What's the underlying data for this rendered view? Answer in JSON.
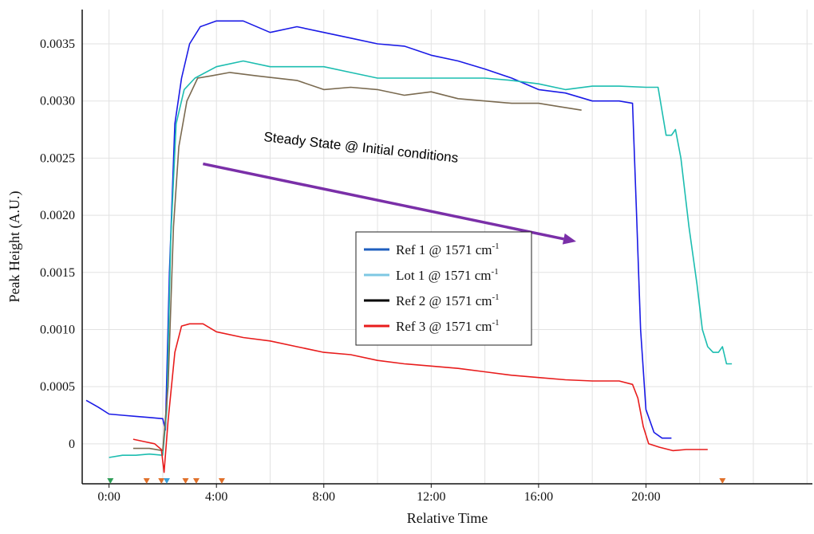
{
  "chart_data": {
    "type": "line",
    "xlabel": "Relative Time",
    "ylabel": "Peak Height (A.U.)",
    "x_unit": "minutes",
    "xlim": [
      -1.0,
      26.2
    ],
    "ylim": [
      -0.00035,
      0.0038
    ],
    "x_ticks": [
      {
        "value": 0,
        "label": "0:00"
      },
      {
        "value": 4,
        "label": "4:00"
      },
      {
        "value": 8,
        "label": "8:00"
      },
      {
        "value": 12,
        "label": "12:00"
      },
      {
        "value": 16,
        "label": "16:00"
      },
      {
        "value": 20,
        "label": "20:00"
      }
    ],
    "y_ticks": [
      {
        "value": 0,
        "label": "0"
      },
      {
        "value": 0.0005,
        "label": "0.0005"
      },
      {
        "value": 0.001,
        "label": "0.0010"
      },
      {
        "value": 0.0015,
        "label": "0.0015"
      },
      {
        "value": 0.002,
        "label": "0.0020"
      },
      {
        "value": 0.0025,
        "label": "0.0025"
      },
      {
        "value": 0.003,
        "label": "0.0030"
      },
      {
        "value": 0.0035,
        "label": "0.0035"
      }
    ],
    "grid": true,
    "legend_position": "center",
    "series": [
      {
        "name": "Ref 1 @ 1571 cm",
        "name_superscript": "-1",
        "color": "#1a1ae6",
        "legend_color": "#1f5fbf",
        "points": [
          [
            -0.85,
            0.00038
          ],
          [
            -0.4,
            0.00032
          ],
          [
            0.0,
            0.00026
          ],
          [
            0.5,
            0.00025
          ],
          [
            1.0,
            0.00024
          ],
          [
            1.5,
            0.00023
          ],
          [
            2.0,
            0.00022
          ],
          [
            2.1,
            0.00012
          ],
          [
            2.25,
            0.0015
          ],
          [
            2.45,
            0.0028
          ],
          [
            2.7,
            0.0032
          ],
          [
            3.0,
            0.0035
          ],
          [
            3.4,
            0.00365
          ],
          [
            4.0,
            0.0037
          ],
          [
            5.0,
            0.0037
          ],
          [
            6.0,
            0.0036
          ],
          [
            7.0,
            0.00365
          ],
          [
            8.0,
            0.0036
          ],
          [
            9.0,
            0.00355
          ],
          [
            10.0,
            0.0035
          ],
          [
            11.0,
            0.00348
          ],
          [
            12.0,
            0.0034
          ],
          [
            13.0,
            0.00335
          ],
          [
            14.0,
            0.00328
          ],
          [
            15.0,
            0.0032
          ],
          [
            16.0,
            0.0031
          ],
          [
            17.0,
            0.00307
          ],
          [
            18.0,
            0.003
          ],
          [
            19.0,
            0.003
          ],
          [
            19.5,
            0.00298
          ],
          [
            19.65,
            0.002
          ],
          [
            19.8,
            0.001
          ],
          [
            20.0,
            0.0003
          ],
          [
            20.3,
            0.0001
          ],
          [
            20.6,
            5e-05
          ],
          [
            20.95,
            5e-05
          ]
        ]
      },
      {
        "name": "Lot 1 @ 1571 cm",
        "name_superscript": "-1",
        "color": "#1cbdb0",
        "legend_color": "#7ec8e3",
        "points": [
          [
            0.0,
            -0.00012
          ],
          [
            0.5,
            -0.0001
          ],
          [
            1.0,
            -0.0001
          ],
          [
            1.5,
            -9e-05
          ],
          [
            2.0,
            -0.0001
          ],
          [
            2.15,
            0.0003
          ],
          [
            2.3,
            0.0018
          ],
          [
            2.5,
            0.0028
          ],
          [
            2.8,
            0.0031
          ],
          [
            3.2,
            0.0032
          ],
          [
            4.0,
            0.0033
          ],
          [
            5.0,
            0.00335
          ],
          [
            6.0,
            0.0033
          ],
          [
            7.0,
            0.0033
          ],
          [
            8.0,
            0.0033
          ],
          [
            9.0,
            0.00325
          ],
          [
            10.0,
            0.0032
          ],
          [
            11.0,
            0.0032
          ],
          [
            12.0,
            0.0032
          ],
          [
            13.0,
            0.0032
          ],
          [
            14.0,
            0.0032
          ],
          [
            15.0,
            0.00318
          ],
          [
            16.0,
            0.00315
          ],
          [
            17.0,
            0.0031
          ],
          [
            18.0,
            0.00313
          ],
          [
            19.0,
            0.00313
          ],
          [
            20.0,
            0.00312
          ],
          [
            20.45,
            0.00312
          ],
          [
            20.75,
            0.0027
          ],
          [
            20.95,
            0.0027
          ],
          [
            21.1,
            0.00275
          ],
          [
            21.3,
            0.0025
          ],
          [
            21.6,
            0.0019
          ],
          [
            21.9,
            0.0014
          ],
          [
            22.1,
            0.001
          ],
          [
            22.3,
            0.00085
          ],
          [
            22.5,
            0.0008
          ],
          [
            22.7,
            0.0008
          ],
          [
            22.85,
            0.00085
          ],
          [
            23.0,
            0.0007
          ],
          [
            23.2,
            0.0007
          ]
        ]
      },
      {
        "name": "Ref 2 @ 1571 cm",
        "name_superscript": "-1",
        "color": "#7a6a50",
        "legend_color": "#000000",
        "points": [
          [
            0.9,
            -4e-05
          ],
          [
            1.5,
            -4e-05
          ],
          [
            2.0,
            -6e-05
          ],
          [
            2.2,
            0.0005
          ],
          [
            2.4,
            0.0019
          ],
          [
            2.6,
            0.0026
          ],
          [
            2.9,
            0.003
          ],
          [
            3.3,
            0.0032
          ],
          [
            3.8,
            0.00322
          ],
          [
            4.5,
            0.00325
          ],
          [
            5.5,
            0.00322
          ],
          [
            7.0,
            0.00318
          ],
          [
            8.0,
            0.0031
          ],
          [
            9.0,
            0.00312
          ],
          [
            10.0,
            0.0031
          ],
          [
            11.0,
            0.00305
          ],
          [
            12.0,
            0.00308
          ],
          [
            13.0,
            0.00302
          ],
          [
            14.0,
            0.003
          ],
          [
            15.0,
            0.00298
          ],
          [
            16.0,
            0.00298
          ],
          [
            16.8,
            0.00295
          ],
          [
            17.6,
            0.00292
          ]
        ]
      },
      {
        "name": "Ref 3 @ 1571 cm",
        "name_superscript": "-1",
        "color": "#e81c1c",
        "legend_color": "#e81c1c",
        "points": [
          [
            0.9,
            4e-05
          ],
          [
            1.3,
            2e-05
          ],
          [
            1.7,
            0.0
          ],
          [
            1.95,
            -5e-05
          ],
          [
            2.05,
            -0.00025
          ],
          [
            2.2,
            0.0002
          ],
          [
            2.45,
            0.0008
          ],
          [
            2.7,
            0.00103
          ],
          [
            3.0,
            0.00105
          ],
          [
            3.5,
            0.00105
          ],
          [
            4.0,
            0.00098
          ],
          [
            5.0,
            0.00093
          ],
          [
            6.0,
            0.0009
          ],
          [
            7.0,
            0.00085
          ],
          [
            8.0,
            0.0008
          ],
          [
            9.0,
            0.00078
          ],
          [
            10.0,
            0.00073
          ],
          [
            11.0,
            0.0007
          ],
          [
            12.0,
            0.00068
          ],
          [
            13.0,
            0.00066
          ],
          [
            14.0,
            0.00063
          ],
          [
            15.0,
            0.0006
          ],
          [
            16.0,
            0.00058
          ],
          [
            17.0,
            0.00056
          ],
          [
            18.0,
            0.00055
          ],
          [
            19.0,
            0.00055
          ],
          [
            19.5,
            0.00052
          ],
          [
            19.7,
            0.0004
          ],
          [
            19.9,
            0.00015
          ],
          [
            20.1,
            0.0
          ],
          [
            20.5,
            -3e-05
          ],
          [
            21.0,
            -6e-05
          ],
          [
            21.5,
            -5e-05
          ],
          [
            22.0,
            -5e-05
          ],
          [
            22.3,
            -5e-05
          ]
        ]
      }
    ],
    "annotation": {
      "text": "Steady State @ Initial conditions",
      "color": "#000000",
      "arrow_color": "#7a2fa8",
      "arrow_from": [
        3.5,
        0.00245
      ],
      "arrow_to": [
        17.4,
        0.00177
      ]
    },
    "markers": [
      {
        "x": 0.05,
        "color": "#2e9e57"
      },
      {
        "x": 1.4,
        "color": "#e0702a"
      },
      {
        "x": 1.95,
        "color": "#e0702a"
      },
      {
        "x": 2.15,
        "color": "#3aa0d8"
      },
      {
        "x": 2.85,
        "color": "#e0702a"
      },
      {
        "x": 3.25,
        "color": "#e0702a"
      },
      {
        "x": 4.2,
        "color": "#e0702a"
      },
      {
        "x": 22.85,
        "color": "#e0702a"
      }
    ]
  }
}
